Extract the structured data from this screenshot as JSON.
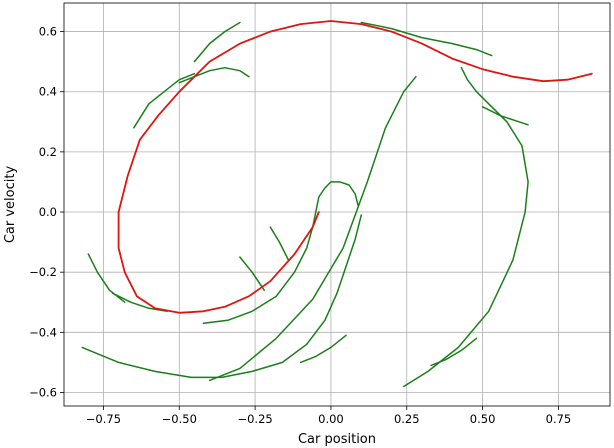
{
  "chart_data": {
    "type": "line",
    "xlabel": "Car position",
    "ylabel": "Car velocity",
    "xlim": [
      -0.88,
      0.92
    ],
    "ylim": [
      -0.645,
      0.695
    ],
    "grid": true,
    "x_ticks": [
      -0.75,
      -0.5,
      -0.25,
      0.0,
      0.25,
      0.5,
      0.75
    ],
    "x_tick_labels": [
      "−0.75",
      "−0.50",
      "−0.25",
      "0.00",
      "0.25",
      "0.50",
      "0.75"
    ],
    "y_ticks": [
      -0.6,
      -0.4,
      -0.2,
      0.0,
      0.2,
      0.4,
      0.6
    ],
    "y_tick_labels": [
      "−0.6",
      "−0.4",
      "−0.2",
      "0.0",
      "0.2",
      "0.4",
      "0.6"
    ],
    "colors": {
      "green": "#1a7f1a",
      "red": "#e0150f",
      "grid": "#b0b0b0"
    },
    "series": [
      {
        "color": "#e0150f",
        "x": [
          0.86,
          0.78,
          0.7,
          0.6,
          0.5,
          0.4,
          0.3,
          0.2,
          0.1,
          0.0,
          -0.1,
          -0.2,
          -0.3,
          -0.4,
          -0.5,
          -0.57,
          -0.63,
          -0.67,
          -0.7,
          -0.7,
          -0.68,
          -0.64,
          -0.58,
          -0.5,
          -0.42,
          -0.35,
          -0.27,
          -0.2,
          -0.12,
          -0.06,
          -0.04
        ],
        "y": [
          0.46,
          0.44,
          0.435,
          0.45,
          0.475,
          0.51,
          0.56,
          0.6,
          0.625,
          0.635,
          0.625,
          0.6,
          0.56,
          0.5,
          0.4,
          0.32,
          0.24,
          0.12,
          0.0,
          -0.12,
          -0.2,
          -0.28,
          -0.32,
          -0.335,
          -0.33,
          -0.315,
          -0.28,
          -0.23,
          -0.14,
          -0.05,
          0.0
        ]
      },
      {
        "color": "#1a7f1a",
        "x": [
          0.24,
          0.32,
          0.42,
          0.52,
          0.6,
          0.64,
          0.65,
          0.63,
          0.58,
          0.52,
          0.48,
          0.45,
          0.43
        ],
        "y": [
          -0.58,
          -0.53,
          -0.45,
          -0.33,
          -0.16,
          0.0,
          0.1,
          0.22,
          0.3,
          0.36,
          0.4,
          0.44,
          0.48
        ]
      },
      {
        "color": "#1a7f1a",
        "x": [
          -0.4,
          -0.3,
          -0.18,
          -0.06,
          0.04,
          0.12,
          0.18,
          0.24,
          0.28
        ],
        "y": [
          -0.56,
          -0.52,
          -0.42,
          -0.29,
          -0.12,
          0.1,
          0.28,
          0.4,
          0.45
        ]
      },
      {
        "color": "#1a7f1a",
        "x": [
          -0.82,
          -0.7,
          -0.58,
          -0.46,
          -0.36,
          -0.26,
          -0.16,
          -0.08,
          -0.02,
          0.02,
          0.05,
          0.08,
          0.1
        ],
        "y": [
          -0.45,
          -0.5,
          -0.53,
          -0.55,
          -0.55,
          -0.53,
          -0.5,
          -0.44,
          -0.36,
          -0.27,
          -0.18,
          -0.09,
          -0.01
        ]
      },
      {
        "color": "#1a7f1a",
        "x": [
          -0.42,
          -0.34,
          -0.26,
          -0.18,
          -0.12,
          -0.08,
          -0.06,
          -0.05,
          -0.04,
          -0.02,
          0.0,
          0.03,
          0.06,
          0.08,
          0.09
        ],
        "y": [
          -0.37,
          -0.36,
          -0.33,
          -0.28,
          -0.2,
          -0.12,
          -0.05,
          0.0,
          0.05,
          0.08,
          0.1,
          0.1,
          0.09,
          0.06,
          0.02
        ]
      },
      {
        "color": "#1a7f1a",
        "x": [
          -0.65,
          -0.6,
          -0.55,
          -0.5,
          -0.45
        ],
        "y": [
          0.28,
          0.36,
          0.4,
          0.44,
          0.46
        ]
      },
      {
        "color": "#1a7f1a",
        "x": [
          -0.45,
          -0.4,
          -0.35,
          -0.3
        ],
        "y": [
          0.5,
          0.56,
          0.6,
          0.63
        ]
      },
      {
        "color": "#1a7f1a",
        "x": [
          -0.5,
          -0.45,
          -0.4,
          -0.35,
          -0.3,
          -0.27
        ],
        "y": [
          0.43,
          0.45,
          0.47,
          0.48,
          0.47,
          0.45
        ]
      },
      {
        "color": "#1a7f1a",
        "x": [
          0.1,
          0.2,
          0.3,
          0.4,
          0.48,
          0.53
        ],
        "y": [
          0.63,
          0.61,
          0.58,
          0.56,
          0.54,
          0.52
        ]
      },
      {
        "color": "#1a7f1a",
        "x": [
          0.5,
          0.56,
          0.62,
          0.65
        ],
        "y": [
          0.35,
          0.32,
          0.3,
          0.29
        ]
      },
      {
        "color": "#1a7f1a",
        "x": [
          -0.8,
          -0.77,
          -0.73,
          -0.68
        ],
        "y": [
          -0.14,
          -0.2,
          -0.26,
          -0.3
        ]
      },
      {
        "color": "#1a7f1a",
        "x": [
          -0.72,
          -0.66,
          -0.6,
          -0.54
        ],
        "y": [
          -0.27,
          -0.3,
          -0.32,
          -0.33
        ]
      },
      {
        "color": "#1a7f1a",
        "x": [
          -0.3,
          -0.26,
          -0.22
        ],
        "y": [
          -0.15,
          -0.2,
          -0.26
        ]
      },
      {
        "color": "#1a7f1a",
        "x": [
          -0.2,
          -0.17,
          -0.14
        ],
        "y": [
          -0.05,
          -0.1,
          -0.16
        ]
      },
      {
        "color": "#1a7f1a",
        "x": [
          -0.1,
          -0.05,
          0.0,
          0.05
        ],
        "y": [
          -0.5,
          -0.48,
          -0.45,
          -0.41
        ]
      },
      {
        "color": "#1a7f1a",
        "x": [
          0.33,
          0.38,
          0.43,
          0.48
        ],
        "y": [
          -0.51,
          -0.49,
          -0.46,
          -0.42
        ]
      }
    ]
  }
}
